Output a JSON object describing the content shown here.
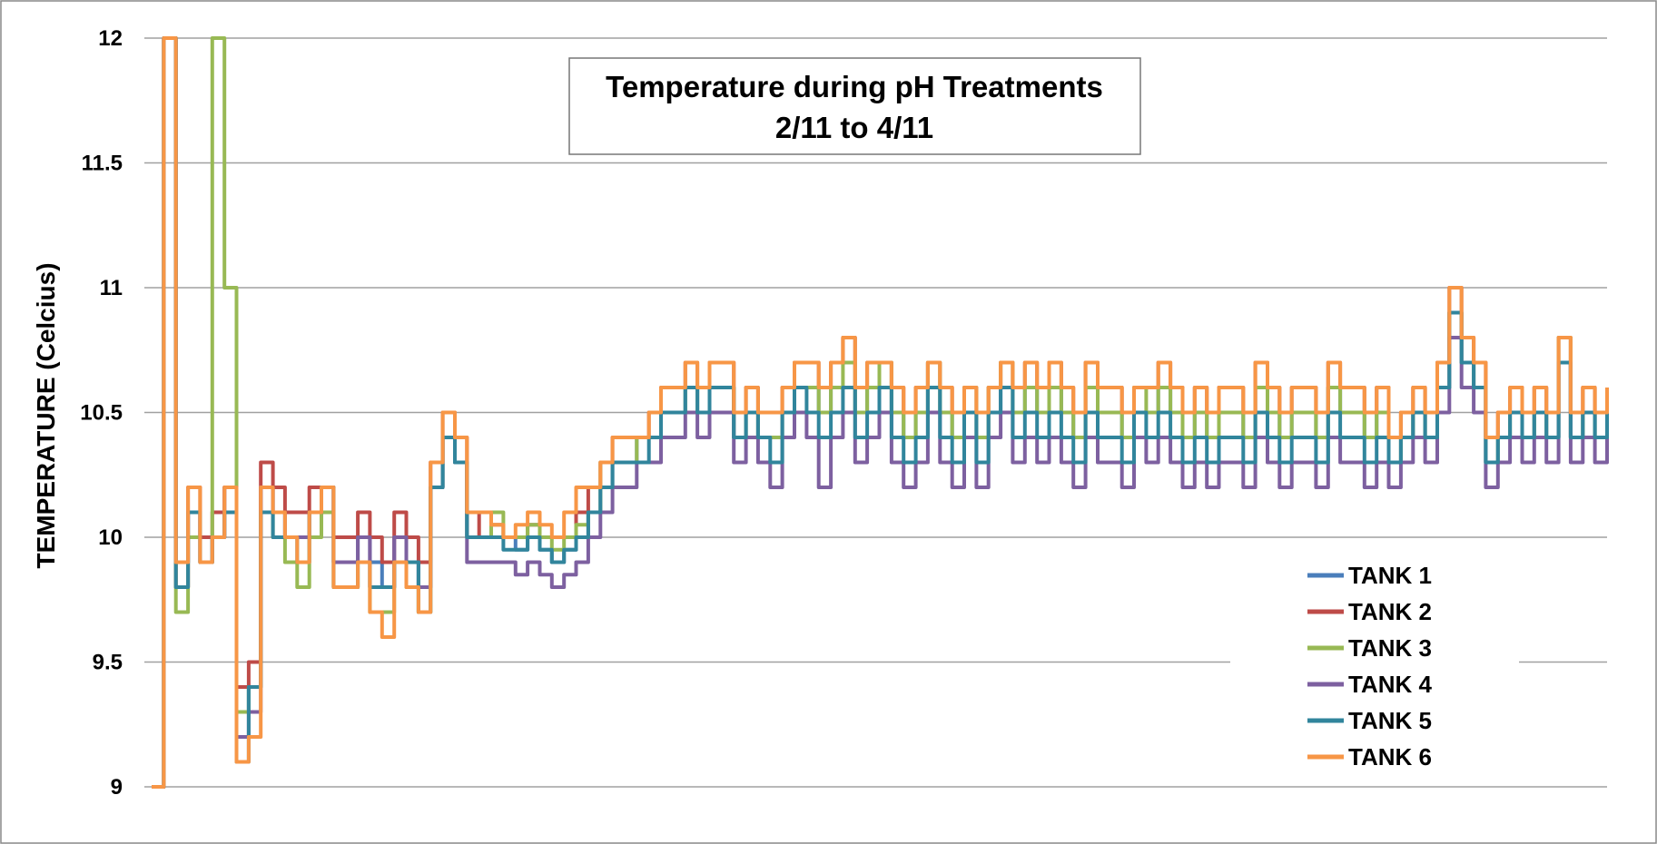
{
  "chart_data": {
    "type": "line",
    "title": "Temperature during pH Treatments",
    "subtitle": "2/11 to 4/11",
    "ylabel": "TEMPERATURE (Celcius)",
    "xlabel": "",
    "ylim": [
      9,
      12
    ],
    "yticks": [
      "9",
      "9.5",
      "10",
      "10.5",
      "11",
      "11.5",
      "12"
    ],
    "ytick_values": [
      9,
      9.5,
      10,
      10.5,
      11,
      11.5,
      12
    ],
    "grid": "horizontal",
    "legend_position": "bottom-right",
    "x": [
      0,
      0.5,
      1,
      1.5,
      2,
      2.5,
      3,
      3.5,
      4,
      4.5,
      5,
      5.5,
      6,
      6.5,
      7,
      7.5,
      8,
      8.5,
      9,
      9.5,
      10,
      10.5,
      11,
      11.5,
      12,
      12.5,
      13,
      13.5,
      14,
      14.5,
      15,
      15.5,
      16,
      16.5,
      17,
      17.5,
      18,
      18.5,
      19,
      19.5,
      20,
      20.5,
      21,
      21.5,
      22,
      22.5,
      23,
      23.5,
      24,
      24.5,
      25,
      25.5,
      26,
      26.5,
      27,
      27.5,
      28,
      28.5,
      29,
      29.5,
      30,
      30.5,
      31,
      31.5,
      32,
      32.5,
      33,
      33.5,
      34,
      34.5,
      35,
      35.5,
      36,
      36.5,
      37,
      37.5,
      38,
      38.5,
      39,
      39.5,
      40,
      40.5,
      41,
      41.5,
      42,
      42.5,
      43,
      43.5,
      44,
      44.5,
      45,
      45.5,
      46,
      46.5,
      47,
      47.5,
      48,
      48.5,
      49,
      49.5,
      50,
      50.5,
      51,
      51.5,
      52,
      52.5,
      53,
      53.5,
      54,
      54.5,
      55,
      55.5,
      56,
      56.5,
      57,
      57.5,
      58,
      58.5,
      59,
      59.5,
      60
    ],
    "series": [
      {
        "name": "TANK 1",
        "color": "#4a7ebb",
        "values": [
          9.0,
          12.0,
          9.8,
          10.1,
          9.9,
          10.0,
          10.1,
          9.3,
          9.4,
          10.2,
          10.1,
          10.0,
          10.0,
          10.1,
          10.2,
          9.9,
          9.9,
          10.0,
          9.9,
          9.8,
          10.0,
          9.9,
          9.8,
          10.2,
          10.4,
          10.3,
          10.0,
          10.0,
          10.0,
          10.0,
          9.95,
          10.0,
          9.95,
          9.9,
          9.95,
          10.0,
          10.1,
          10.2,
          10.3,
          10.3,
          10.4,
          10.4,
          10.5,
          10.5,
          10.6,
          10.5,
          10.6,
          10.6,
          10.4,
          10.5,
          10.4,
          10.4,
          10.5,
          10.6,
          10.6,
          10.5,
          10.6,
          10.6,
          10.5,
          10.6,
          10.6,
          10.5,
          10.4,
          10.5,
          10.6,
          10.5,
          10.4,
          10.5,
          10.4,
          10.5,
          10.6,
          10.5,
          10.6,
          10.5,
          10.6,
          10.5,
          10.4,
          10.6,
          10.5,
          10.5,
          10.4,
          10.5,
          10.5,
          10.6,
          10.5,
          10.4,
          10.5,
          10.4,
          10.5,
          10.5,
          10.4,
          10.6,
          10.5,
          10.4,
          10.5,
          10.5,
          10.4,
          10.6,
          10.5,
          10.5,
          10.4,
          10.5,
          10.3,
          10.4,
          10.5,
          10.4,
          10.6,
          10.9,
          10.7,
          10.6,
          10.3,
          10.4,
          10.5,
          10.4,
          10.5,
          10.4,
          10.7,
          10.4,
          10.5,
          10.4,
          10.5
        ]
      },
      {
        "name": "TANK 2",
        "color": "#be4b48",
        "values": [
          9.0,
          12.0,
          9.8,
          10.2,
          10.0,
          10.1,
          10.2,
          9.4,
          9.5,
          10.3,
          10.2,
          10.1,
          10.1,
          10.2,
          10.2,
          10.0,
          10.0,
          10.1,
          10.0,
          9.9,
          10.1,
          10.0,
          9.9,
          10.3,
          10.5,
          10.4,
          10.1,
          10.0,
          10.05,
          10.0,
          10.0,
          10.05,
          10.0,
          10.0,
          10.0,
          10.1,
          10.2,
          10.3,
          10.4,
          10.4,
          10.4,
          10.5,
          10.6,
          10.6,
          10.7,
          10.6,
          10.7,
          10.7,
          10.5,
          10.6,
          10.5,
          10.5,
          10.6,
          10.7,
          10.7,
          10.6,
          10.7,
          10.8,
          10.6,
          10.7,
          10.7,
          10.6,
          10.5,
          10.6,
          10.7,
          10.6,
          10.5,
          10.6,
          10.5,
          10.6,
          10.7,
          10.6,
          10.7,
          10.6,
          10.7,
          10.6,
          10.5,
          10.7,
          10.6,
          10.6,
          10.5,
          10.6,
          10.6,
          10.7,
          10.6,
          10.5,
          10.6,
          10.5,
          10.6,
          10.6,
          10.5,
          10.7,
          10.6,
          10.5,
          10.6,
          10.6,
          10.5,
          10.7,
          10.6,
          10.6,
          10.5,
          10.6,
          10.4,
          10.5,
          10.6,
          10.5,
          10.7,
          11.0,
          10.8,
          10.7,
          10.4,
          10.5,
          10.6,
          10.5,
          10.6,
          10.5,
          10.8,
          10.5,
          10.6,
          10.5,
          10.6
        ]
      },
      {
        "name": "TANK 3",
        "color": "#98b954",
        "values": [
          9.0,
          12.0,
          9.7,
          10.0,
          9.9,
          12.0,
          11.0,
          9.3,
          9.4,
          10.1,
          10.0,
          9.9,
          9.8,
          10.0,
          10.1,
          9.8,
          9.8,
          9.9,
          9.7,
          9.7,
          9.9,
          9.8,
          9.7,
          10.2,
          10.4,
          10.3,
          10.0,
          10.0,
          10.1,
          10.0,
          10.0,
          10.05,
          10.0,
          9.95,
          10.0,
          10.05,
          10.1,
          10.3,
          10.3,
          10.3,
          10.4,
          10.4,
          10.5,
          10.5,
          10.6,
          10.5,
          10.6,
          10.6,
          10.4,
          10.5,
          10.4,
          10.4,
          10.5,
          10.6,
          10.6,
          10.5,
          10.6,
          10.7,
          10.5,
          10.6,
          10.7,
          10.5,
          10.4,
          10.5,
          10.7,
          10.5,
          10.4,
          10.6,
          10.4,
          10.6,
          10.7,
          10.5,
          10.6,
          10.5,
          10.6,
          10.5,
          10.4,
          10.6,
          10.5,
          10.5,
          10.4,
          10.6,
          10.5,
          10.6,
          10.5,
          10.4,
          10.5,
          10.4,
          10.5,
          10.5,
          10.4,
          10.6,
          10.5,
          10.4,
          10.5,
          10.5,
          10.4,
          10.6,
          10.5,
          10.5,
          10.4,
          10.5,
          10.3,
          10.4,
          10.5,
          10.4,
          10.6,
          10.9,
          10.7,
          10.6,
          10.3,
          10.4,
          10.5,
          10.4,
          10.5,
          10.4,
          10.8,
          10.4,
          10.5,
          10.4,
          10.5
        ]
      },
      {
        "name": "TANK 4",
        "color": "#7d60a0",
        "values": [
          9.0,
          12.0,
          9.9,
          10.1,
          9.9,
          10.0,
          10.2,
          9.2,
          9.3,
          10.2,
          10.1,
          10.0,
          10.0,
          10.1,
          10.2,
          9.9,
          9.9,
          10.0,
          9.8,
          9.8,
          10.0,
          9.9,
          9.8,
          10.2,
          10.4,
          10.3,
          9.9,
          9.9,
          9.9,
          9.9,
          9.85,
          9.9,
          9.85,
          9.8,
          9.85,
          9.9,
          10.0,
          10.1,
          10.2,
          10.2,
          10.3,
          10.3,
          10.4,
          10.4,
          10.5,
          10.4,
          10.5,
          10.5,
          10.3,
          10.4,
          10.3,
          10.2,
          10.4,
          10.5,
          10.4,
          10.2,
          10.4,
          10.5,
          10.3,
          10.4,
          10.5,
          10.3,
          10.2,
          10.3,
          10.5,
          10.3,
          10.2,
          10.4,
          10.2,
          10.4,
          10.5,
          10.3,
          10.4,
          10.3,
          10.4,
          10.3,
          10.2,
          10.4,
          10.3,
          10.3,
          10.2,
          10.4,
          10.3,
          10.4,
          10.3,
          10.2,
          10.3,
          10.2,
          10.3,
          10.3,
          10.2,
          10.4,
          10.3,
          10.2,
          10.3,
          10.3,
          10.2,
          10.4,
          10.3,
          10.3,
          10.2,
          10.3,
          10.2,
          10.3,
          10.4,
          10.3,
          10.5,
          10.8,
          10.6,
          10.5,
          10.2,
          10.3,
          10.4,
          10.3,
          10.4,
          10.3,
          10.7,
          10.3,
          10.4,
          10.3,
          10.4
        ]
      },
      {
        "name": "TANK 5",
        "color": "#31859c",
        "values": [
          9.0,
          12.0,
          9.8,
          10.1,
          9.9,
          10.0,
          10.1,
          9.1,
          9.4,
          10.1,
          10.0,
          10.0,
          9.9,
          10.1,
          10.2,
          9.8,
          9.8,
          9.9,
          9.8,
          9.8,
          9.9,
          9.9,
          9.7,
          10.2,
          10.4,
          10.3,
          10.0,
          10.0,
          10.0,
          9.95,
          9.95,
          10.0,
          9.95,
          9.9,
          9.95,
          10.0,
          10.1,
          10.2,
          10.3,
          10.3,
          10.3,
          10.4,
          10.5,
          10.5,
          10.6,
          10.5,
          10.6,
          10.6,
          10.4,
          10.5,
          10.4,
          10.3,
          10.5,
          10.6,
          10.5,
          10.4,
          10.5,
          10.6,
          10.4,
          10.5,
          10.6,
          10.4,
          10.3,
          10.4,
          10.6,
          10.4,
          10.3,
          10.5,
          10.3,
          10.5,
          10.6,
          10.4,
          10.5,
          10.4,
          10.5,
          10.4,
          10.3,
          10.5,
          10.4,
          10.4,
          10.3,
          10.5,
          10.4,
          10.5,
          10.4,
          10.3,
          10.4,
          10.3,
          10.4,
          10.4,
          10.3,
          10.5,
          10.4,
          10.3,
          10.4,
          10.4,
          10.3,
          10.5,
          10.4,
          10.4,
          10.3,
          10.4,
          10.3,
          10.4,
          10.5,
          10.4,
          10.6,
          10.9,
          10.7,
          10.6,
          10.3,
          10.4,
          10.5,
          10.4,
          10.5,
          10.4,
          10.7,
          10.4,
          10.5,
          10.4,
          10.5
        ]
      },
      {
        "name": "TANK 6",
        "color": "#f79646",
        "values": [
          9.0,
          12.0,
          9.9,
          10.2,
          9.9,
          10.0,
          10.2,
          9.1,
          9.2,
          10.2,
          10.1,
          10.0,
          9.9,
          10.1,
          10.2,
          9.8,
          9.8,
          9.9,
          9.7,
          9.6,
          9.9,
          9.8,
          9.7,
          10.3,
          10.5,
          10.4,
          10.1,
          10.1,
          10.05,
          10.0,
          10.05,
          10.1,
          10.05,
          10.0,
          10.1,
          10.2,
          10.2,
          10.3,
          10.4,
          10.4,
          10.4,
          10.5,
          10.6,
          10.6,
          10.7,
          10.6,
          10.7,
          10.7,
          10.5,
          10.6,
          10.5,
          10.5,
          10.6,
          10.7,
          10.7,
          10.6,
          10.7,
          10.8,
          10.6,
          10.7,
          10.7,
          10.6,
          10.5,
          10.6,
          10.7,
          10.6,
          10.5,
          10.6,
          10.5,
          10.6,
          10.7,
          10.6,
          10.7,
          10.6,
          10.7,
          10.6,
          10.5,
          10.7,
          10.6,
          10.6,
          10.5,
          10.6,
          10.6,
          10.7,
          10.6,
          10.5,
          10.6,
          10.5,
          10.6,
          10.6,
          10.5,
          10.7,
          10.6,
          10.5,
          10.6,
          10.6,
          10.5,
          10.7,
          10.6,
          10.6,
          10.5,
          10.6,
          10.4,
          10.5,
          10.6,
          10.5,
          10.7,
          11.0,
          10.8,
          10.7,
          10.4,
          10.5,
          10.6,
          10.5,
          10.6,
          10.5,
          10.8,
          10.5,
          10.6,
          10.5,
          10.6
        ]
      }
    ]
  }
}
